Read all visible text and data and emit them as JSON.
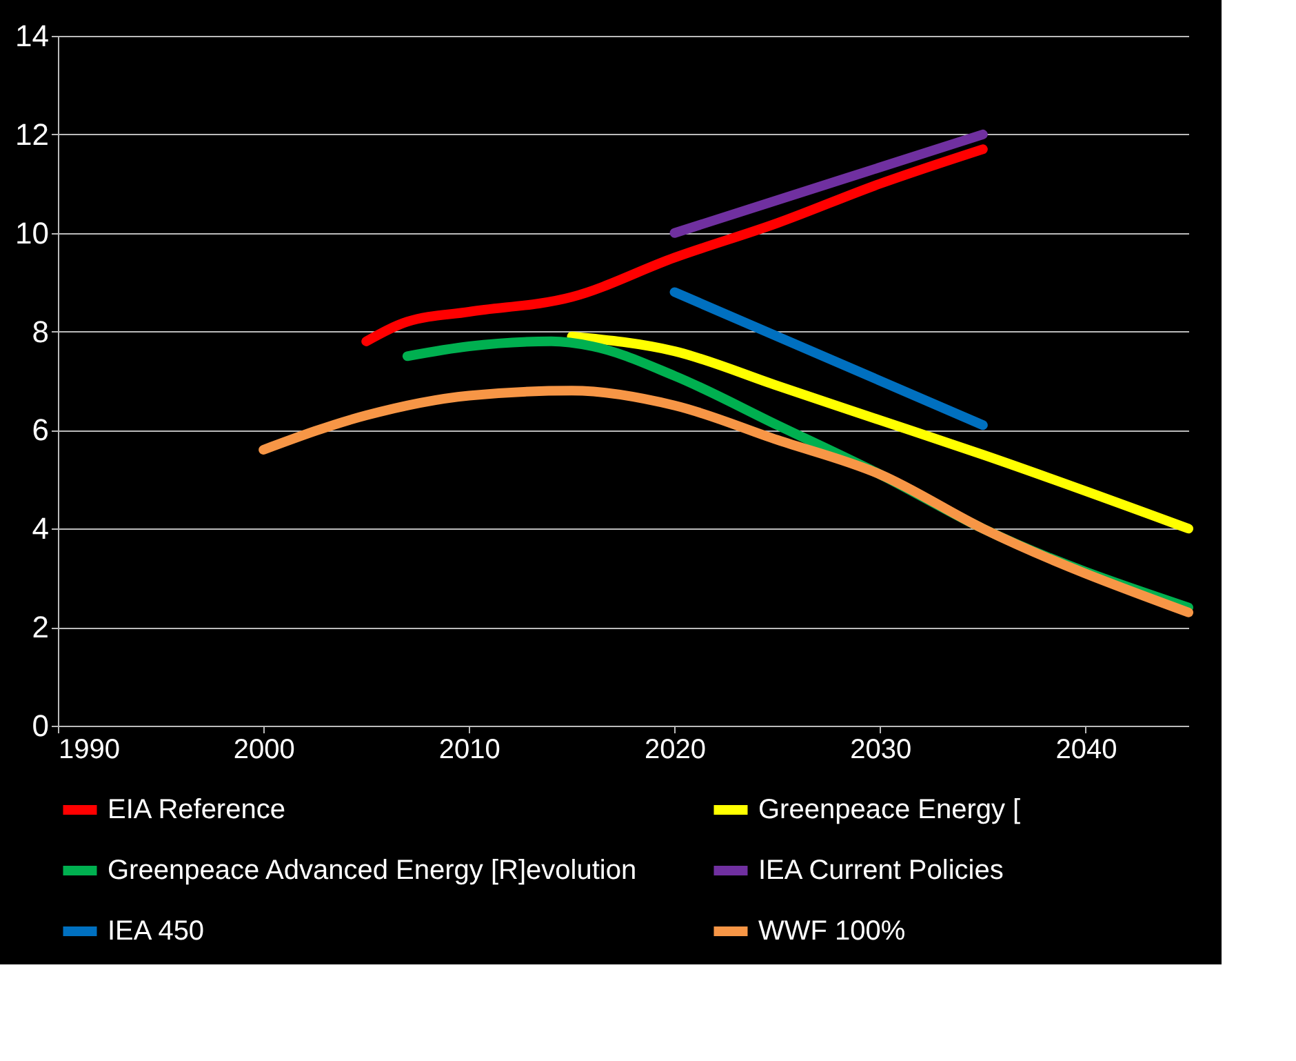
{
  "chart_data": {
    "type": "line",
    "xlim": [
      1990,
      2045
    ],
    "xticks": [
      1990,
      2000,
      2010,
      2020,
      2030,
      2040
    ],
    "ylim": [
      0,
      14
    ],
    "yticks": [
      0,
      2,
      4,
      6,
      8,
      10,
      12,
      14
    ],
    "grid": "y",
    "legend": "bottom",
    "marker": "none",
    "line_style": "solid",
    "series": [
      {
        "name": "EIA Reference",
        "color": "#ff0000",
        "x": [
          2005,
          2007,
          2010,
          2015,
          2020,
          2025,
          2030,
          2035
        ],
        "values": [
          7.8,
          8.2,
          8.4,
          8.7,
          9.5,
          10.2,
          11.0,
          11.7
        ]
      },
      {
        "name": "Greenpeace Energy [",
        "color": "#ffff00",
        "x": [
          2015,
          2020,
          2025,
          2030,
          2035,
          2045
        ],
        "values": [
          7.9,
          7.6,
          6.9,
          6.2,
          5.5,
          4.0
        ]
      },
      {
        "name": "Greenpeace Advanced Energy [R]evolution",
        "color": "#00b050",
        "x": [
          2007,
          2010,
          2014,
          2016,
          2020,
          2025,
          2030,
          2035,
          2045
        ],
        "values": [
          7.5,
          7.7,
          7.8,
          7.7,
          7.1,
          6.1,
          5.1,
          4.0,
          2.4
        ]
      },
      {
        "name": "IEA Current Policies",
        "color": "#7030a0",
        "x": [
          2020,
          2035
        ],
        "values": [
          10.0,
          12.0
        ]
      },
      {
        "name": "IEA 450",
        "color": "#0070c0",
        "x": [
          2020,
          2035
        ],
        "values": [
          8.8,
          6.1
        ]
      },
      {
        "name": "WWF 100%",
        "color": "#f79646",
        "x": [
          2000,
          2005,
          2010,
          2015,
          2020,
          2025,
          2030,
          2035,
          2045
        ],
        "values": [
          5.6,
          6.3,
          6.7,
          6.8,
          6.5,
          5.8,
          5.1,
          4.0,
          2.3
        ]
      }
    ]
  }
}
